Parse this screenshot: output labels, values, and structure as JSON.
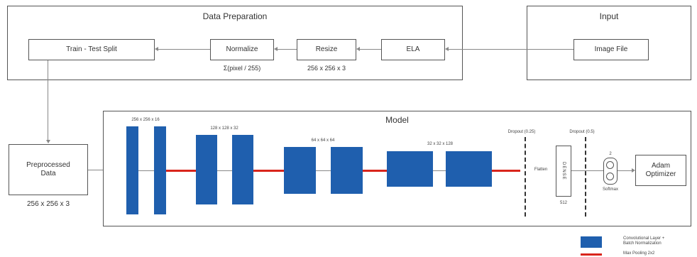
{
  "data_preparation": {
    "title": "Data Preparation",
    "train_test_split": "Train - Test Split",
    "normalize": "Normalize",
    "normalize_caption": "Σ(pixel / 255)",
    "resize": "Resize",
    "resize_caption": "256 x 256 x 3",
    "ela": "ELA"
  },
  "input": {
    "title": "Input",
    "image_file": "Image File"
  },
  "preprocessed": {
    "label": "Preprocessed Data",
    "caption": "256 x 256 x 3"
  },
  "model": {
    "title": "Model",
    "dims": [
      "256 x 256 x 16",
      "128 x 128 x 32",
      "64 x 64 x 64",
      "32 x 32 x 128"
    ],
    "dropout_1": "Dropout (0.25)",
    "dropout_2": "Dropout (0.5)",
    "flatten": "Flatten",
    "dense": "DENSE",
    "dense_units": "512",
    "softmax_units": "2",
    "softmax": "Softmax",
    "optimizer": "Adam Optimizer"
  },
  "legend": {
    "conv": "Convolutional Layer + Batch Normalization",
    "pool": "Max Pooling 2x2"
  },
  "colors": {
    "conv_block": "#1f5fae",
    "max_pool": "#d9251c"
  }
}
